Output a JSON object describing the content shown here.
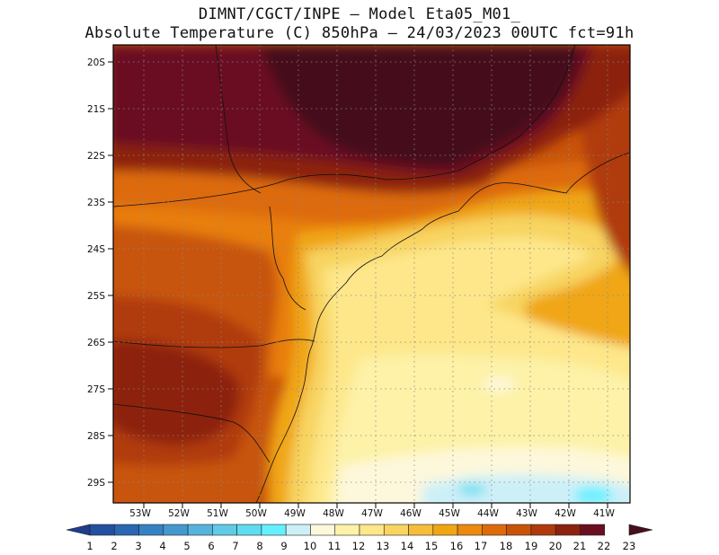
{
  "header": {
    "line1": "DIMNT/CGCT/INPE –  Model Eta05_M01_",
    "line2": "Absolute Temperature (C) 850hPa –  24/03/2023 00UTC fct=91h"
  },
  "map": {
    "lat_labels": [
      "20S",
      "21S",
      "22S",
      "23S",
      "24S",
      "25S",
      "26S",
      "27S",
      "28S",
      "29S"
    ],
    "lon_labels": [
      "53W",
      "52W",
      "51W",
      "50W",
      "49W",
      "48W",
      "47W",
      "46W",
      "45W",
      "44W",
      "43W",
      "42W",
      "41W"
    ],
    "lon_range": [
      -53.8,
      -40.4
    ],
    "lat_range": [
      -29.4,
      -19.8
    ],
    "grid": "dotted"
  },
  "colorbar": {
    "labels": [
      "1",
      "2",
      "3",
      "4",
      "5",
      "6",
      "7",
      "8",
      "9",
      "10",
      "11",
      "12",
      "13",
      "14",
      "15",
      "16",
      "17",
      "18",
      "19",
      "20",
      "21",
      "22",
      "23"
    ],
    "colors": [
      "#1f3d8c",
      "#2350a0",
      "#2b67b3",
      "#3681c2",
      "#4399cd",
      "#55b3dc",
      "#5fcbe7",
      "#5fdcf0",
      "#66f0ff",
      "#cdf0f8",
      "#fdf8dc",
      "#fdf2a8",
      "#fde78a",
      "#f8d460",
      "#f5bd3a",
      "#f0a613",
      "#eb8a0f",
      "#dd6b0b",
      "#c8540a",
      "#b03a0c",
      "#8c230f",
      "#6a0f20",
      "#45101a"
    ]
  }
}
